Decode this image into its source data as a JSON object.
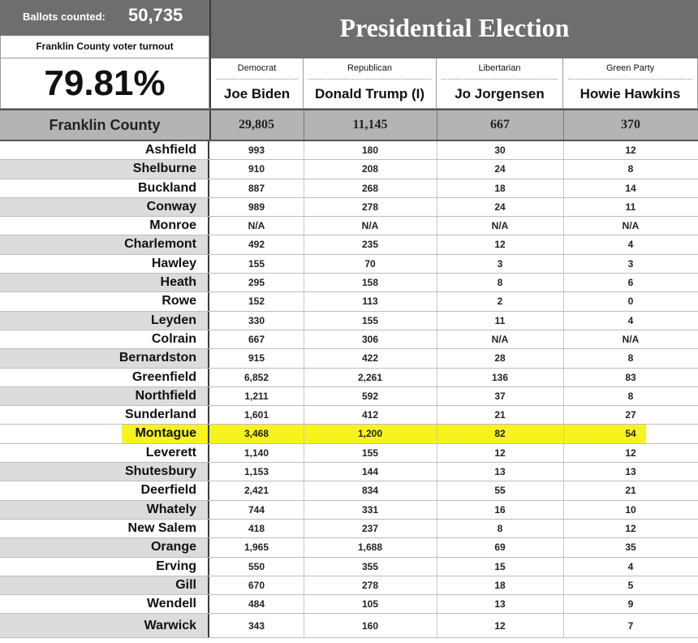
{
  "header": {
    "ballots_label": "Ballots counted:",
    "ballots_value": "50,735",
    "turnout_label": "Franklin County voter turnout",
    "turnout_value": "79.81%",
    "title": "Presidential Election"
  },
  "candidates": [
    {
      "party": "Democrat",
      "name": "Joe Biden"
    },
    {
      "party": "Republican",
      "name": "Donald Trump (I)"
    },
    {
      "party": "Libertarian",
      "name": "Jo Jorgensen"
    },
    {
      "party": "Green Party",
      "name": "Howie Hawkins"
    }
  ],
  "totals": {
    "label": "Franklin County",
    "values": [
      "29,805",
      "11,145",
      "667",
      "370"
    ]
  },
  "towns": [
    {
      "name": "Ashfield",
      "values": [
        "993",
        "180",
        "30",
        "12"
      ]
    },
    {
      "name": "Shelburne",
      "values": [
        "910",
        "208",
        "24",
        "8"
      ]
    },
    {
      "name": "Buckland",
      "values": [
        "887",
        "268",
        "18",
        "14"
      ]
    },
    {
      "name": "Conway",
      "values": [
        "989",
        "278",
        "24",
        "11"
      ]
    },
    {
      "name": "Monroe",
      "values": [
        "N/A",
        "N/A",
        "N/A",
        "N/A"
      ]
    },
    {
      "name": "Charlemont",
      "values": [
        "492",
        "235",
        "12",
        "4"
      ]
    },
    {
      "name": "Hawley",
      "values": [
        "155",
        "70",
        "3",
        "3"
      ]
    },
    {
      "name": "Heath",
      "values": [
        "295",
        "158",
        "8",
        "6"
      ]
    },
    {
      "name": "Rowe",
      "values": [
        "152",
        "113",
        "2",
        "0"
      ]
    },
    {
      "name": "Leyden",
      "values": [
        "330",
        "155",
        "11",
        "4"
      ]
    },
    {
      "name": "Colrain",
      "values": [
        "667",
        "306",
        "N/A",
        "N/A"
      ]
    },
    {
      "name": "Bernardston",
      "values": [
        "915",
        "422",
        "28",
        "8"
      ]
    },
    {
      "name": "Greenfield",
      "values": [
        "6,852",
        "2,261",
        "136",
        "83"
      ]
    },
    {
      "name": "Northfield",
      "values": [
        "1,211",
        "592",
        "37",
        "8"
      ]
    },
    {
      "name": "Sunderland",
      "values": [
        "1,601",
        "412",
        "21",
        "27"
      ]
    },
    {
      "name": "Montague",
      "values": [
        "3,468",
        "1,200",
        "82",
        "54"
      ],
      "highlighted": true
    },
    {
      "name": "Leverett",
      "values": [
        "1,140",
        "155",
        "12",
        "12"
      ]
    },
    {
      "name": "Shutesbury",
      "values": [
        "1,153",
        "144",
        "13",
        "13"
      ]
    },
    {
      "name": "Deerfield",
      "values": [
        "2,421",
        "834",
        "55",
        "21"
      ]
    },
    {
      "name": "Whately",
      "values": [
        "744",
        "331",
        "16",
        "10"
      ]
    },
    {
      "name": "New Salem",
      "values": [
        "418",
        "237",
        "8",
        "12"
      ]
    },
    {
      "name": "Orange",
      "values": [
        "1,965",
        "1,688",
        "69",
        "35"
      ]
    },
    {
      "name": "Erving",
      "values": [
        "550",
        "355",
        "15",
        "4"
      ]
    },
    {
      "name": "Gill",
      "values": [
        "670",
        "278",
        "18",
        "5"
      ]
    },
    {
      "name": "Wendell",
      "values": [
        "484",
        "105",
        "13",
        "9"
      ]
    },
    {
      "name": "Warwick",
      "values": [
        "343",
        "160",
        "12",
        "7"
      ]
    }
  ],
  "colors": {
    "header_gray": "#6e6e6e",
    "totals_gray": "#b4b4b4",
    "row_shade": "#dcdcdc",
    "highlight": "#f6f30a"
  }
}
